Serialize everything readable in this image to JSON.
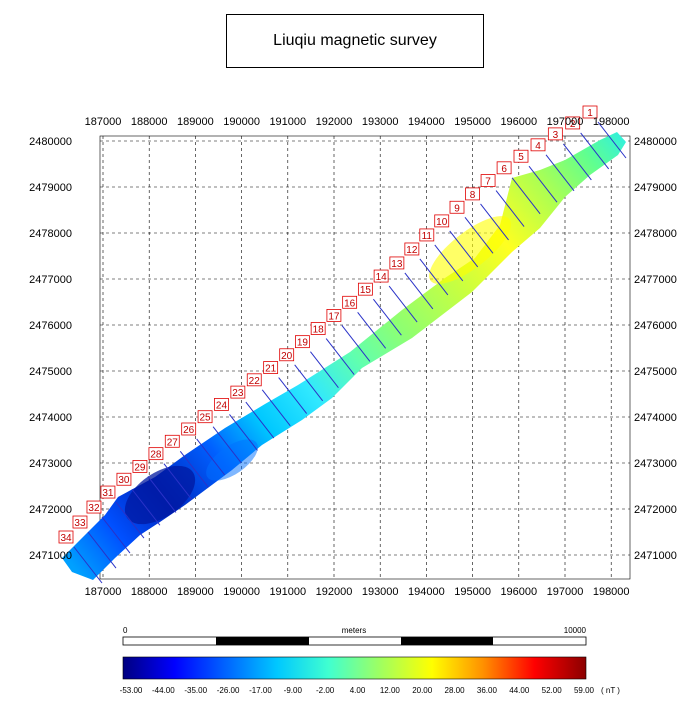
{
  "title": "Liuqiu magnetic survey",
  "x_ticks": [
    "187000",
    "188000",
    "189000",
    "190000",
    "191000",
    "192000",
    "193000",
    "194000",
    "195000",
    "196000",
    "197000",
    "198000"
  ],
  "y_ticks": [
    "2480000",
    "2479000",
    "2478000",
    "2477000",
    "2476000",
    "2475000",
    "2474000",
    "2473000",
    "2472000",
    "2471000"
  ],
  "line_labels": [
    "1",
    "2",
    "3",
    "4",
    "5",
    "6",
    "7",
    "8",
    "9",
    "10",
    "11",
    "12",
    "13",
    "14",
    "15",
    "16",
    "17",
    "18",
    "19",
    "20",
    "21",
    "22",
    "23",
    "24",
    "25",
    "26",
    "27",
    "28",
    "29",
    "30",
    "31",
    "32",
    "33",
    "34"
  ],
  "scale_bar": {
    "start": "0",
    "unit": "meters",
    "end": "10000"
  },
  "colorbar": {
    "ticks": [
      "-53.00",
      "-44.00",
      "-35.00",
      "-26.00",
      "-17.00",
      "-9.00",
      "-2.00",
      "4.00",
      "12.00",
      "20.00",
      "28.00",
      "36.00",
      "44.00",
      "52.00",
      "59.00"
    ],
    "unit": "( nT )",
    "colors": [
      "#000080",
      "#0000ff",
      "#0064ff",
      "#00c8ff",
      "#40ffd0",
      "#a0ff60",
      "#ffff00",
      "#ff9000",
      "#ff0000",
      "#8b0000"
    ]
  },
  "colors": {
    "survey_lines": "#2a32c8",
    "label_border": "#e00000",
    "grid": "#000000"
  }
}
